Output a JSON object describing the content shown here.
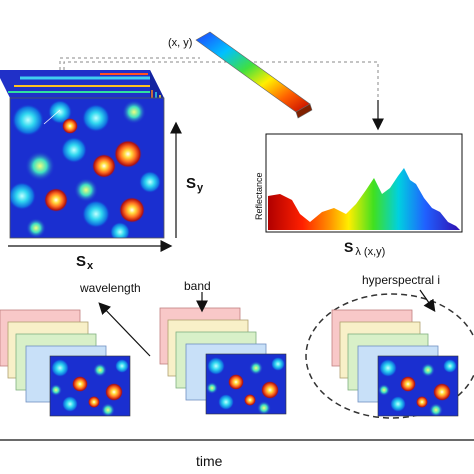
{
  "top": {
    "pixel_label": "(x, y)",
    "sx_label": "S",
    "sx_sub": "x",
    "sy_label": "S",
    "sy_sub": "y",
    "reflectance_label": "Reflectance",
    "spectrum_label": "S",
    "spectrum_sub": "λ (x,y)"
  },
  "bottom": {
    "wavelength_label": "wavelength",
    "band_label": "band",
    "hyperspectral_label": "hyperspectral i",
    "time_label": "time"
  },
  "colors": {
    "map_background": "#1a2fd0",
    "blob_hot": "#f0c020",
    "blob_warm": "#2ad0e8",
    "frame_pink": "#f8c8c8",
    "frame_green": "#d8f0c8",
    "frame_blue": "#c8e0f8",
    "frame_yellow": "#f8f0c8"
  }
}
